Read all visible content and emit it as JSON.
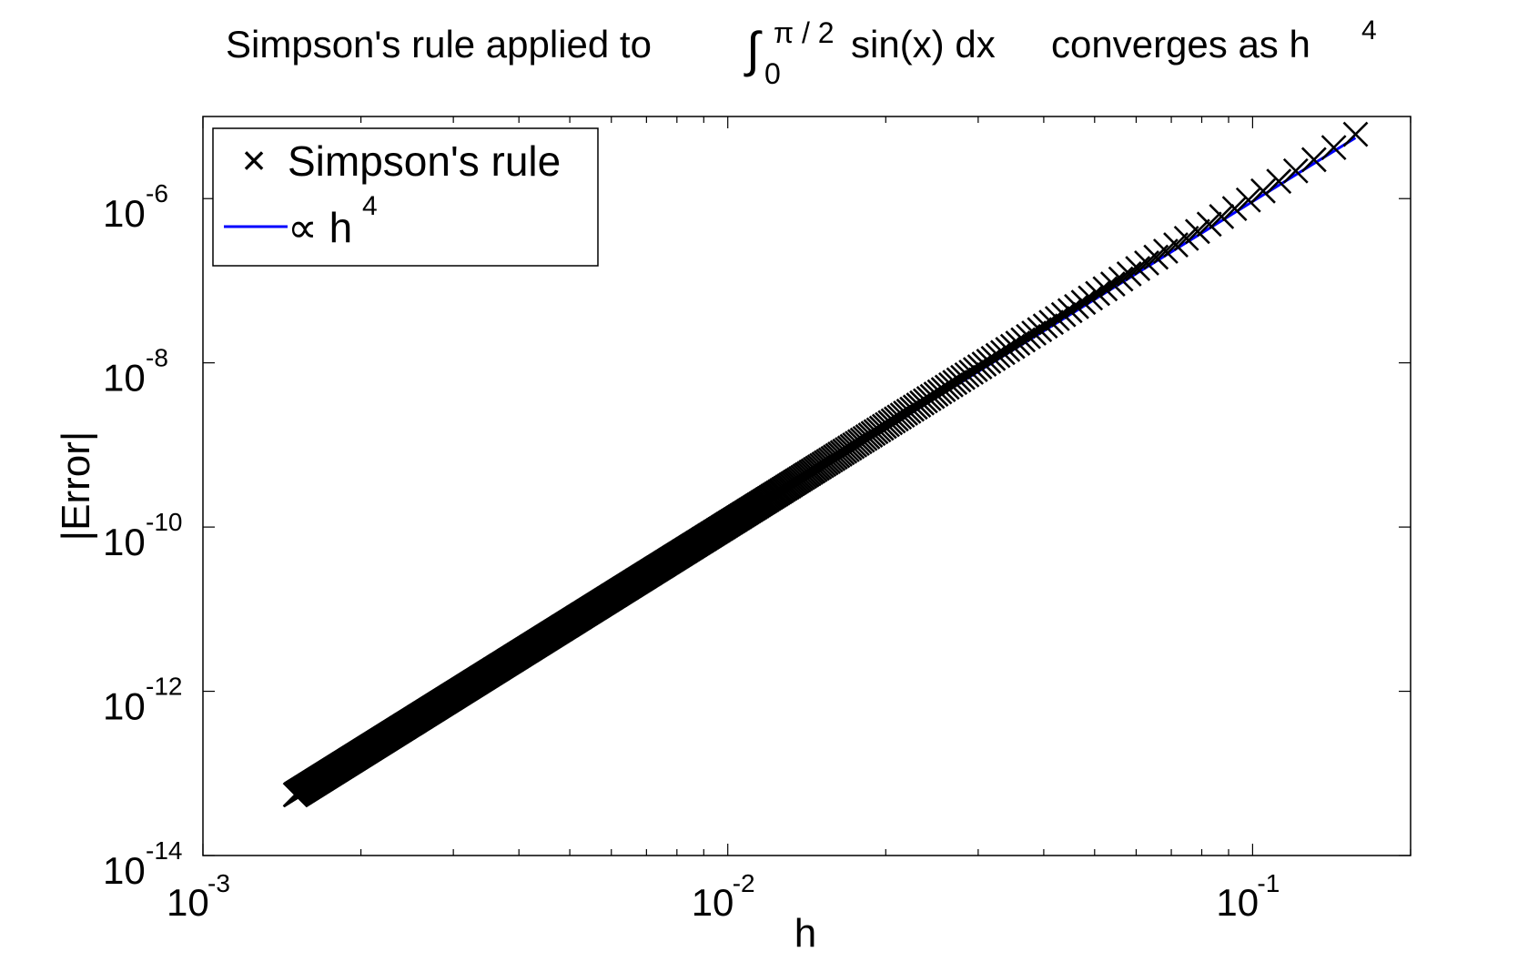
{
  "chart_data": {
    "type": "scatter",
    "title": {
      "prefix": "Simpson's rule applied to ",
      "integral_sign": "∫",
      "upper_limit": "π / 2",
      "lower_limit": "0",
      "integrand": "sin(x) dx",
      "suffix": "converges as h",
      "exponent": "4"
    },
    "xlabel": "h",
    "ylabel": "|Error|",
    "xscale": "log",
    "yscale": "log",
    "xlim": [
      0.001,
      0.2
    ],
    "ylim": [
      1e-14,
      1e-05
    ],
    "grid": false,
    "legend_position": "top-left",
    "x_ticks": [
      {
        "value": 0.001,
        "base": "10",
        "exp": "-3"
      },
      {
        "value": 0.01,
        "base": "10",
        "exp": "-2"
      },
      {
        "value": 0.1,
        "base": "10",
        "exp": "-1"
      }
    ],
    "y_ticks": [
      {
        "value": 1e-06,
        "base": "10",
        "exp": "-6"
      },
      {
        "value": 1e-08,
        "base": "10",
        "exp": "-8"
      },
      {
        "value": 1e-10,
        "base": "10",
        "exp": "-10"
      },
      {
        "value": 1e-12,
        "base": "10",
        "exp": "-12"
      },
      {
        "value": 1e-14,
        "base": "10",
        "exp": "-14"
      }
    ],
    "series": [
      {
        "name": "Simpson's rule",
        "legend_marker": "×",
        "marker": "x",
        "color": "#000000",
        "h_from": 0.0015,
        "h_to": 0.157,
        "approx_error_coefficient": 0.0133,
        "approx_error_relation": "|Error| ≈ 0.0133 · h^4 (decreasing slightly for large h)"
      },
      {
        "name_prefix": "∝ h",
        "name_exponent": "4",
        "marker": "line",
        "color": "#0000ff",
        "x": [
          0.0015,
          0.157
        ],
        "y": [
          5.5e-14,
          5.5e-06
        ]
      }
    ]
  }
}
